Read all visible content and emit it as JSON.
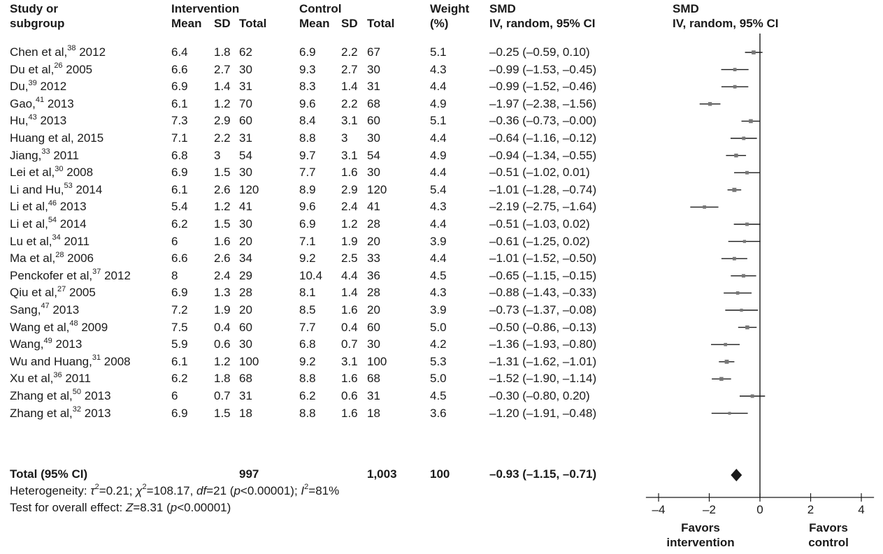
{
  "headers": {
    "study_line1": "Study or",
    "study_line2": "subgroup",
    "intervention": "Intervention",
    "control": "Control",
    "weight_line1": "Weight",
    "weight_line2": "(%)",
    "smd_line1": "SMD",
    "smd_line2": "IV, random, 95% CI",
    "plot_line1": "SMD",
    "plot_line2": "IV, random, 95% CI",
    "mean": "Mean",
    "sd": "SD",
    "total": "Total"
  },
  "studies": [
    {
      "name": "Chen et al,",
      "ref": "38",
      "year": " 2012",
      "int_mean": "6.4",
      "int_sd": "1.8",
      "int_total": "62",
      "ctl_mean": "6.9",
      "ctl_sd": "2.2",
      "ctl_total": "67",
      "weight": "5.1",
      "ci": "–0.25 (–0.59, 0.10)"
    },
    {
      "name": "Du et al,",
      "ref": "26",
      "year": " 2005",
      "int_mean": "6.6",
      "int_sd": "2.7",
      "int_total": "30",
      "ctl_mean": "9.3",
      "ctl_sd": "2.7",
      "ctl_total": "30",
      "weight": "4.3",
      "ci": "–0.99 (–1.53, –0.45)"
    },
    {
      "name": "Du,",
      "ref": "39",
      "year": " 2012",
      "int_mean": "6.9",
      "int_sd": "1.4",
      "int_total": "31",
      "ctl_mean": "8.3",
      "ctl_sd": "1.4",
      "ctl_total": "31",
      "weight": "4.4",
      "ci": "–0.99 (–1.52, –0.46)"
    },
    {
      "name": "Gao,",
      "ref": "41",
      "year": " 2013",
      "int_mean": "6.1",
      "int_sd": "1.2",
      "int_total": "70",
      "ctl_mean": "9.6",
      "ctl_sd": "2.2",
      "ctl_total": "68",
      "weight": "4.9",
      "ci": "–1.97 (–2.38, –1.56)"
    },
    {
      "name": "Hu,",
      "ref": "43",
      "year": " 2013",
      "int_mean": "7.3",
      "int_sd": "2.9",
      "int_total": "60",
      "ctl_mean": "8.4",
      "ctl_sd": "3.1",
      "ctl_total": "60",
      "weight": "5.1",
      "ci": "–0.36 (–0.73, –0.00)"
    },
    {
      "name": "Huang et al, 2015",
      "ref": "",
      "year": "",
      "int_mean": "7.1",
      "int_sd": "2.2",
      "int_total": "31",
      "ctl_mean": "8.8",
      "ctl_sd": "3",
      "ctl_total": "30",
      "weight": "4.4",
      "ci": "–0.64 (–1.16, –0.12)"
    },
    {
      "name": "Jiang,",
      "ref": "33",
      "year": " 2011",
      "int_mean": "6.8",
      "int_sd": "3",
      "int_total": "54",
      "ctl_mean": "9.7",
      "ctl_sd": "3.1",
      "ctl_total": "54",
      "weight": "4.9",
      "ci": "–0.94 (–1.34, –0.55)"
    },
    {
      "name": "Lei et al,",
      "ref": "30",
      "year": " 2008",
      "int_mean": "6.9",
      "int_sd": "1.5",
      "int_total": "30",
      "ctl_mean": "7.7",
      "ctl_sd": "1.6",
      "ctl_total": "30",
      "weight": "4.4",
      "ci": "–0.51 (–1.02, 0.01)"
    },
    {
      "name": "Li and Hu,",
      "ref": "53",
      "year": " 2014",
      "int_mean": "6.1",
      "int_sd": "2.6",
      "int_total": "120",
      "ctl_mean": "8.9",
      "ctl_sd": "2.9",
      "ctl_total": "120",
      "weight": "5.4",
      "ci": "–1.01 (–1.28, –0.74)"
    },
    {
      "name": "Li et al,",
      "ref": "46",
      "year": " 2013",
      "int_mean": "5.4",
      "int_sd": "1.2",
      "int_total": "41",
      "ctl_mean": "9.6",
      "ctl_sd": "2.4",
      "ctl_total": "41",
      "weight": "4.3",
      "ci": "–2.19 (–2.75, –1.64)"
    },
    {
      "name": "Li et al,",
      "ref": "54",
      "year": " 2014",
      "int_mean": "6.2",
      "int_sd": "1.5",
      "int_total": "30",
      "ctl_mean": "6.9",
      "ctl_sd": "1.2",
      "ctl_total": "28",
      "weight": "4.4",
      "ci": "–0.51 (–1.03, 0.02)"
    },
    {
      "name": "Lu et al,",
      "ref": "34",
      "year": " 2011",
      "int_mean": "6",
      "int_sd": "1.6",
      "int_total": "20",
      "ctl_mean": "7.1",
      "ctl_sd": "1.9",
      "ctl_total": "20",
      "weight": "3.9",
      "ci": "–0.61 (–1.25, 0.02)"
    },
    {
      "name": "Ma et al,",
      "ref": "28",
      "year": " 2006",
      "int_mean": "6.6",
      "int_sd": "2.6",
      "int_total": "34",
      "ctl_mean": "9.2",
      "ctl_sd": "2.5",
      "ctl_total": "33",
      "weight": "4.4",
      "ci": "–1.01 (–1.52, –0.50)"
    },
    {
      "name": "Penckofer et al,",
      "ref": "37",
      "year": " 2012",
      "int_mean": "8",
      "int_sd": "2.4",
      "int_total": "29",
      "ctl_mean": "10.4",
      "ctl_sd": "4.4",
      "ctl_total": "36",
      "weight": "4.5",
      "ci": "–0.65 (–1.15, –0.15)"
    },
    {
      "name": "Qiu et al,",
      "ref": "27",
      "year": " 2005",
      "int_mean": "6.9",
      "int_sd": "1.3",
      "int_total": "28",
      "ctl_mean": "8.1",
      "ctl_sd": "1.4",
      "ctl_total": "28",
      "weight": "4.3",
      "ci": "–0.88 (–1.43, –0.33)"
    },
    {
      "name": "Sang,",
      "ref": "47",
      "year": " 2013",
      "int_mean": "7.2",
      "int_sd": "1.9",
      "int_total": "20",
      "ctl_mean": "8.5",
      "ctl_sd": "1.6",
      "ctl_total": "20",
      "weight": "3.9",
      "ci": "–0.73 (–1.37, –0.08)"
    },
    {
      "name": "Wang et al,",
      "ref": "48",
      "year": " 2009",
      "int_mean": "7.5",
      "int_sd": "0.4",
      "int_total": "60",
      "ctl_mean": "7.7",
      "ctl_sd": "0.4",
      "ctl_total": "60",
      "weight": "5.0",
      "ci": "–0.50 (–0.86, –0.13)"
    },
    {
      "name": "Wang,",
      "ref": "49",
      "year": " 2013",
      "int_mean": "5.9",
      "int_sd": "0.6",
      "int_total": "30",
      "ctl_mean": "6.8",
      "ctl_sd": "0.7",
      "ctl_total": "30",
      "weight": "4.2",
      "ci": "–1.36 (–1.93, –0.80)"
    },
    {
      "name": "Wu and Huang,",
      "ref": "31",
      "year": " 2008",
      "int_mean": "6.1",
      "int_sd": "1.2",
      "int_total": "100",
      "ctl_mean": "9.2",
      "ctl_sd": "3.1",
      "ctl_total": "100",
      "weight": "5.3",
      "ci": "–1.31 (–1.62, –1.01)"
    },
    {
      "name": "Xu et al,",
      "ref": "36",
      "year": " 2011",
      "int_mean": "6.2",
      "int_sd": "1.8",
      "int_total": "68",
      "ctl_mean": "8.8",
      "ctl_sd": "1.6",
      "ctl_total": "68",
      "weight": "5.0",
      "ci": "–1.52 (–1.90, –1.14)"
    },
    {
      "name": "Zhang et al,",
      "ref": "50",
      "year": " 2013",
      "int_mean": "6",
      "int_sd": "0.7",
      "int_total": "31",
      "ctl_mean": "6.2",
      "ctl_sd": "0.6",
      "ctl_total": "31",
      "weight": "4.5",
      "ci": "–0.30 (–0.80, 0.20)"
    },
    {
      "name": "Zhang et al,",
      "ref": "32",
      "year": " 2013",
      "int_mean": "6.9",
      "int_sd": "1.5",
      "int_total": "18",
      "ctl_mean": "8.8",
      "ctl_sd": "1.6",
      "ctl_total": "18",
      "weight": "3.6",
      "ci": "–1.20 (–1.91, –0.48)"
    }
  ],
  "total": {
    "label": "Total (95% CI)",
    "int_total": "997",
    "ctl_total": "1,003",
    "weight": "100",
    "ci": "–0.93 (–1.15, –0.71)"
  },
  "footer": {
    "het_a": "Heterogeneity: ",
    "tau": "τ",
    "het_b": "=0.21; ",
    "chi": "χ",
    "het_c": "=108.17, ",
    "df": "df",
    "het_d": "=21 (",
    "p1": "p",
    "het_e": "<0.00001); ",
    "i": "I",
    "het_f": "=81%",
    "sq": "2",
    "test_a": "Test for overall effect: ",
    "z": "Z",
    "test_b": "=8.31 (",
    "p2": "p",
    "test_c": "<0.00001)"
  },
  "favors": {
    "left_line1": "Favors",
    "left_line2": "intervention",
    "right_line1": "Favors",
    "right_line2": "control"
  },
  "colors": {
    "text": "#1a1a1a",
    "marker": "#777777",
    "line": "#1a1a1a"
  },
  "chart_data": {
    "type": "forest",
    "xlim": [
      -4.5,
      4.5
    ],
    "ticks": [
      -4,
      -2,
      0,
      2,
      4
    ],
    "tick_labels": [
      "–4",
      "–2",
      "0",
      "2",
      "4"
    ],
    "studies": [
      {
        "smd": -0.25,
        "lower": -0.59,
        "upper": 0.1,
        "weight": 5.1
      },
      {
        "smd": -0.99,
        "lower": -1.53,
        "upper": -0.45,
        "weight": 4.3
      },
      {
        "smd": -0.99,
        "lower": -1.52,
        "upper": -0.46,
        "weight": 4.4
      },
      {
        "smd": -1.97,
        "lower": -2.38,
        "upper": -1.56,
        "weight": 4.9
      },
      {
        "smd": -0.36,
        "lower": -0.73,
        "upper": -0.0,
        "weight": 5.1
      },
      {
        "smd": -0.64,
        "lower": -1.16,
        "upper": -0.12,
        "weight": 4.4
      },
      {
        "smd": -0.94,
        "lower": -1.34,
        "upper": -0.55,
        "weight": 4.9
      },
      {
        "smd": -0.51,
        "lower": -1.02,
        "upper": 0.01,
        "weight": 4.4
      },
      {
        "smd": -1.01,
        "lower": -1.28,
        "upper": -0.74,
        "weight": 5.4
      },
      {
        "smd": -2.19,
        "lower": -2.75,
        "upper": -1.64,
        "weight": 4.3
      },
      {
        "smd": -0.51,
        "lower": -1.03,
        "upper": 0.02,
        "weight": 4.4
      },
      {
        "smd": -0.61,
        "lower": -1.25,
        "upper": 0.02,
        "weight": 3.9
      },
      {
        "smd": -1.01,
        "lower": -1.52,
        "upper": -0.5,
        "weight": 4.4
      },
      {
        "smd": -0.65,
        "lower": -1.15,
        "upper": -0.15,
        "weight": 4.5
      },
      {
        "smd": -0.88,
        "lower": -1.43,
        "upper": -0.33,
        "weight": 4.3
      },
      {
        "smd": -0.73,
        "lower": -1.37,
        "upper": -0.08,
        "weight": 3.9
      },
      {
        "smd": -0.5,
        "lower": -0.86,
        "upper": -0.13,
        "weight": 5.0
      },
      {
        "smd": -1.36,
        "lower": -1.93,
        "upper": -0.8,
        "weight": 4.2
      },
      {
        "smd": -1.31,
        "lower": -1.62,
        "upper": -1.01,
        "weight": 5.3
      },
      {
        "smd": -1.52,
        "lower": -1.9,
        "upper": -1.14,
        "weight": 5.0
      },
      {
        "smd": -0.3,
        "lower": -0.8,
        "upper": 0.2,
        "weight": 4.5
      },
      {
        "smd": -1.2,
        "lower": -1.91,
        "upper": -0.48,
        "weight": 3.6
      }
    ],
    "pooled": {
      "smd": -0.93,
      "lower": -1.15,
      "upper": -0.71
    }
  }
}
